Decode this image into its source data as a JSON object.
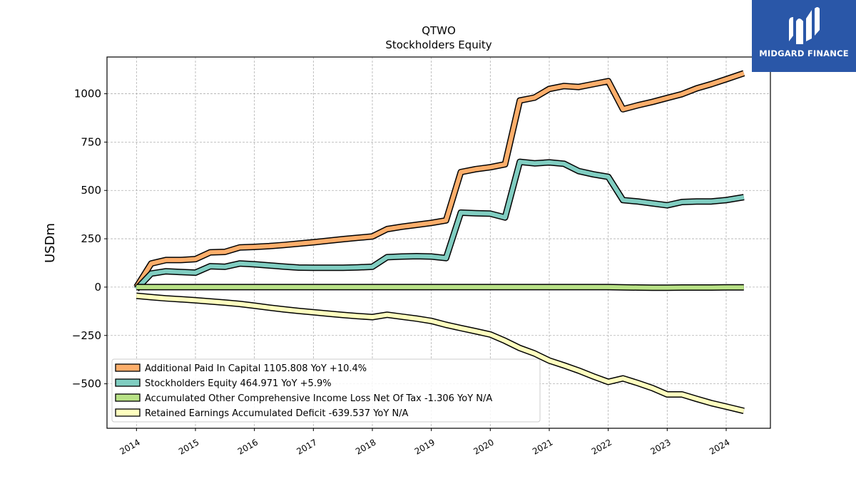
{
  "chart_data": {
    "type": "line",
    "title": "QTWO",
    "subtitle": "Stockholders  Equity",
    "ylabel": "USDm",
    "xlabel": "",
    "xlim": [
      2013.5,
      2024.75
    ],
    "ylim": [
      -730,
      1190
    ],
    "yticks": [
      -500,
      -250,
      0,
      250,
      500,
      750,
      1000
    ],
    "ytick_labels": [
      "−500",
      "−250",
      "0",
      "250",
      "500",
      "750",
      "1000"
    ],
    "xticks": [
      2014,
      2015,
      2016,
      2017,
      2018,
      2019,
      2020,
      2021,
      2022,
      2023,
      2024
    ],
    "xtick_labels": [
      "2014",
      "2015",
      "2016",
      "2017",
      "2018",
      "2019",
      "2020",
      "2021",
      "2022",
      "2023",
      "2024"
    ],
    "grid": true,
    "legend_position": "lower-left",
    "series": [
      {
        "name": "Additional Paid In Capital  1105.808 YoY +10.4%",
        "color": "#fdae6b",
        "x": [
          2014.0,
          2014.25,
          2014.5,
          2014.75,
          2015.0,
          2015.25,
          2015.5,
          2015.75,
          2016.0,
          2016.25,
          2016.5,
          2016.75,
          2017.0,
          2017.25,
          2017.5,
          2017.75,
          2018.0,
          2018.25,
          2018.5,
          2018.75,
          2019.0,
          2019.25,
          2019.5,
          2019.75,
          2020.0,
          2020.25,
          2020.5,
          2020.75,
          2021.0,
          2021.25,
          2021.5,
          2021.75,
          2022.0,
          2022.25,
          2022.5,
          2022.75,
          2023.0,
          2023.25,
          2023.5,
          2023.75,
          2024.0,
          2024.3
        ],
        "values": [
          0,
          122,
          140,
          140,
          145,
          180,
          182,
          205,
          208,
          212,
          218,
          225,
          232,
          240,
          248,
          255,
          262,
          300,
          312,
          322,
          332,
          345,
          595,
          610,
          620,
          635,
          965,
          980,
          1025,
          1040,
          1035,
          1050,
          1065,
          920,
          940,
          958,
          978,
          998,
          1028,
          1050,
          1075,
          1106
        ]
      },
      {
        "name": "Stockholders Equity  464.971 YoY +5.9%",
        "color": "#80cdc1",
        "x": [
          2014.0,
          2014.25,
          2014.5,
          2014.75,
          2015.0,
          2015.25,
          2015.5,
          2015.75,
          2016.0,
          2016.25,
          2016.5,
          2016.75,
          2017.0,
          2017.25,
          2017.5,
          2017.75,
          2018.0,
          2018.25,
          2018.5,
          2018.75,
          2019.0,
          2019.25,
          2019.5,
          2019.75,
          2020.0,
          2020.25,
          2020.5,
          2020.75,
          2021.0,
          2021.25,
          2021.5,
          2021.75,
          2022.0,
          2022.25,
          2022.5,
          2022.75,
          2023.0,
          2023.25,
          2023.5,
          2023.75,
          2024.0,
          2024.3
        ],
        "values": [
          -10,
          70,
          82,
          78,
          75,
          108,
          105,
          122,
          118,
          112,
          106,
          101,
          100,
          100,
          100,
          102,
          105,
          155,
          158,
          160,
          158,
          150,
          385,
          382,
          380,
          360,
          648,
          640,
          645,
          638,
          600,
          583,
          570,
          450,
          443,
          433,
          423,
          440,
          443,
          443,
          450,
          465
        ]
      },
      {
        "name": "Accumulated Other Comprehensive Income Loss Net Of Tax  -1.306 YoY N/A",
        "color": "#b8e186",
        "x": [
          2014.0,
          2014.25,
          2014.5,
          2014.75,
          2015.0,
          2015.25,
          2015.5,
          2015.75,
          2016.0,
          2016.25,
          2016.5,
          2016.75,
          2017.0,
          2017.25,
          2017.5,
          2017.75,
          2018.0,
          2018.25,
          2018.5,
          2018.75,
          2019.0,
          2019.25,
          2019.5,
          2019.75,
          2020.0,
          2020.25,
          2020.5,
          2020.75,
          2021.0,
          2021.25,
          2021.5,
          2021.75,
          2022.0,
          2022.25,
          2022.5,
          2022.75,
          2023.0,
          2023.25,
          2023.5,
          2023.75,
          2024.0,
          2024.3
        ],
        "values": [
          0,
          0,
          0,
          0,
          0,
          0,
          0,
          0,
          0,
          0,
          0,
          0,
          0,
          0,
          0,
          0,
          0,
          0,
          0,
          0,
          0,
          0,
          0,
          0,
          0,
          0,
          0,
          0,
          0,
          0,
          0,
          0,
          0,
          -1,
          -2,
          -3,
          -3,
          -2,
          -2,
          -2,
          -1.5,
          -1.3
        ]
      },
      {
        "name": "Retained Earnings Accumulated Deficit  -639.537 YoY N/A",
        "color": "#ffffbf",
        "x": [
          2014.0,
          2014.25,
          2014.5,
          2014.75,
          2015.0,
          2015.25,
          2015.5,
          2015.75,
          2016.0,
          2016.25,
          2016.5,
          2016.75,
          2017.0,
          2017.25,
          2017.5,
          2017.75,
          2018.0,
          2018.25,
          2018.5,
          2018.75,
          2019.0,
          2019.25,
          2019.5,
          2019.75,
          2020.0,
          2020.25,
          2020.5,
          2020.75,
          2021.0,
          2021.25,
          2021.5,
          2021.75,
          2022.0,
          2022.25,
          2022.5,
          2022.75,
          2023.0,
          2023.25,
          2023.5,
          2023.75,
          2024.0,
          2024.3
        ],
        "values": [
          -45,
          -52,
          -58,
          -63,
          -68,
          -74,
          -80,
          -87,
          -96,
          -106,
          -115,
          -123,
          -130,
          -137,
          -144,
          -150,
          -155,
          -143,
          -153,
          -163,
          -175,
          -195,
          -212,
          -228,
          -245,
          -278,
          -315,
          -343,
          -380,
          -405,
          -432,
          -462,
          -490,
          -472,
          -496,
          -522,
          -555,
          -555,
          -578,
          -600,
          -618,
          -640
        ]
      }
    ]
  },
  "logo": {
    "name": "MIDGARD FINANCE"
  }
}
